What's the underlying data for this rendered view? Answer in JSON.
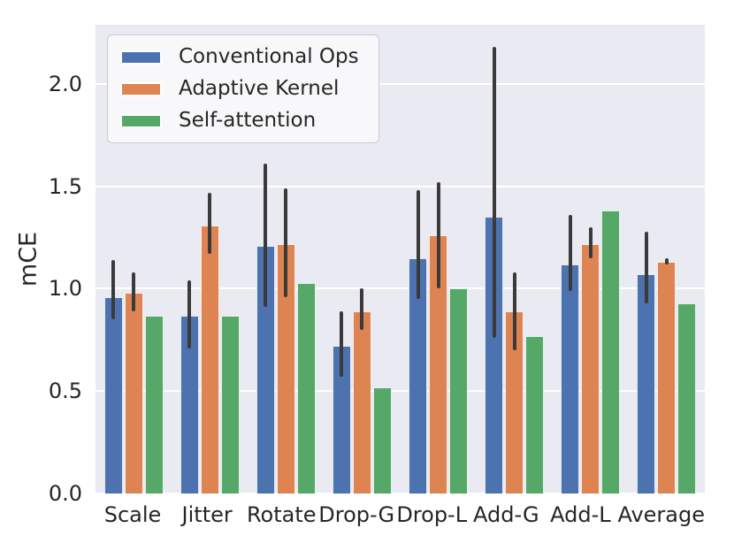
{
  "figure": {
    "background_color": "#ffffff",
    "plot_background_color": "#eaeaf2",
    "grid_color": "#ffffff",
    "text_color": "#262626",
    "error_bar_color": "#3a3a3a"
  },
  "chart_data": {
    "type": "bar",
    "title": "",
    "xlabel": "",
    "ylabel": "mCE",
    "grid": true,
    "legend_position": "upper left",
    "ylim": [
      0,
      2.289
    ],
    "yticks": [
      0.0,
      0.5,
      1.0,
      1.5,
      2.0
    ],
    "ytick_labels": [
      "0.0",
      "0.5",
      "1.0",
      "1.5",
      "2.0"
    ],
    "categories": [
      "Scale",
      "Jitter",
      "Rotate",
      "Drop-G",
      "Drop-L",
      "Add-G",
      "Add-L",
      "Average"
    ],
    "series": [
      {
        "name": "Conventional Ops",
        "color": "#4c72b0",
        "values": [
          0.96,
          0.87,
          1.21,
          0.72,
          1.15,
          1.35,
          1.12,
          1.07
        ],
        "err_low": [
          0.85,
          0.71,
          0.91,
          0.57,
          0.95,
          0.76,
          0.99,
          0.93
        ],
        "err_high": [
          1.14,
          1.04,
          1.61,
          0.89,
          1.48,
          2.18,
          1.36,
          1.28
        ]
      },
      {
        "name": "Adaptive Kernel",
        "color": "#dd8452",
        "values": [
          0.98,
          1.31,
          1.22,
          0.89,
          1.26,
          0.89,
          1.22,
          1.13
        ],
        "err_low": [
          0.89,
          1.17,
          0.96,
          0.8,
          1.0,
          0.7,
          1.15,
          1.12
        ],
        "err_high": [
          1.08,
          1.47,
          1.49,
          1.0,
          1.52,
          1.08,
          1.3,
          1.15
        ]
      },
      {
        "name": "Self-attention",
        "color": "#55a868",
        "values": [
          0.87,
          0.87,
          1.03,
          0.52,
          1.0,
          0.77,
          1.38,
          0.93
        ],
        "err_low": null,
        "err_high": null
      }
    ]
  }
}
